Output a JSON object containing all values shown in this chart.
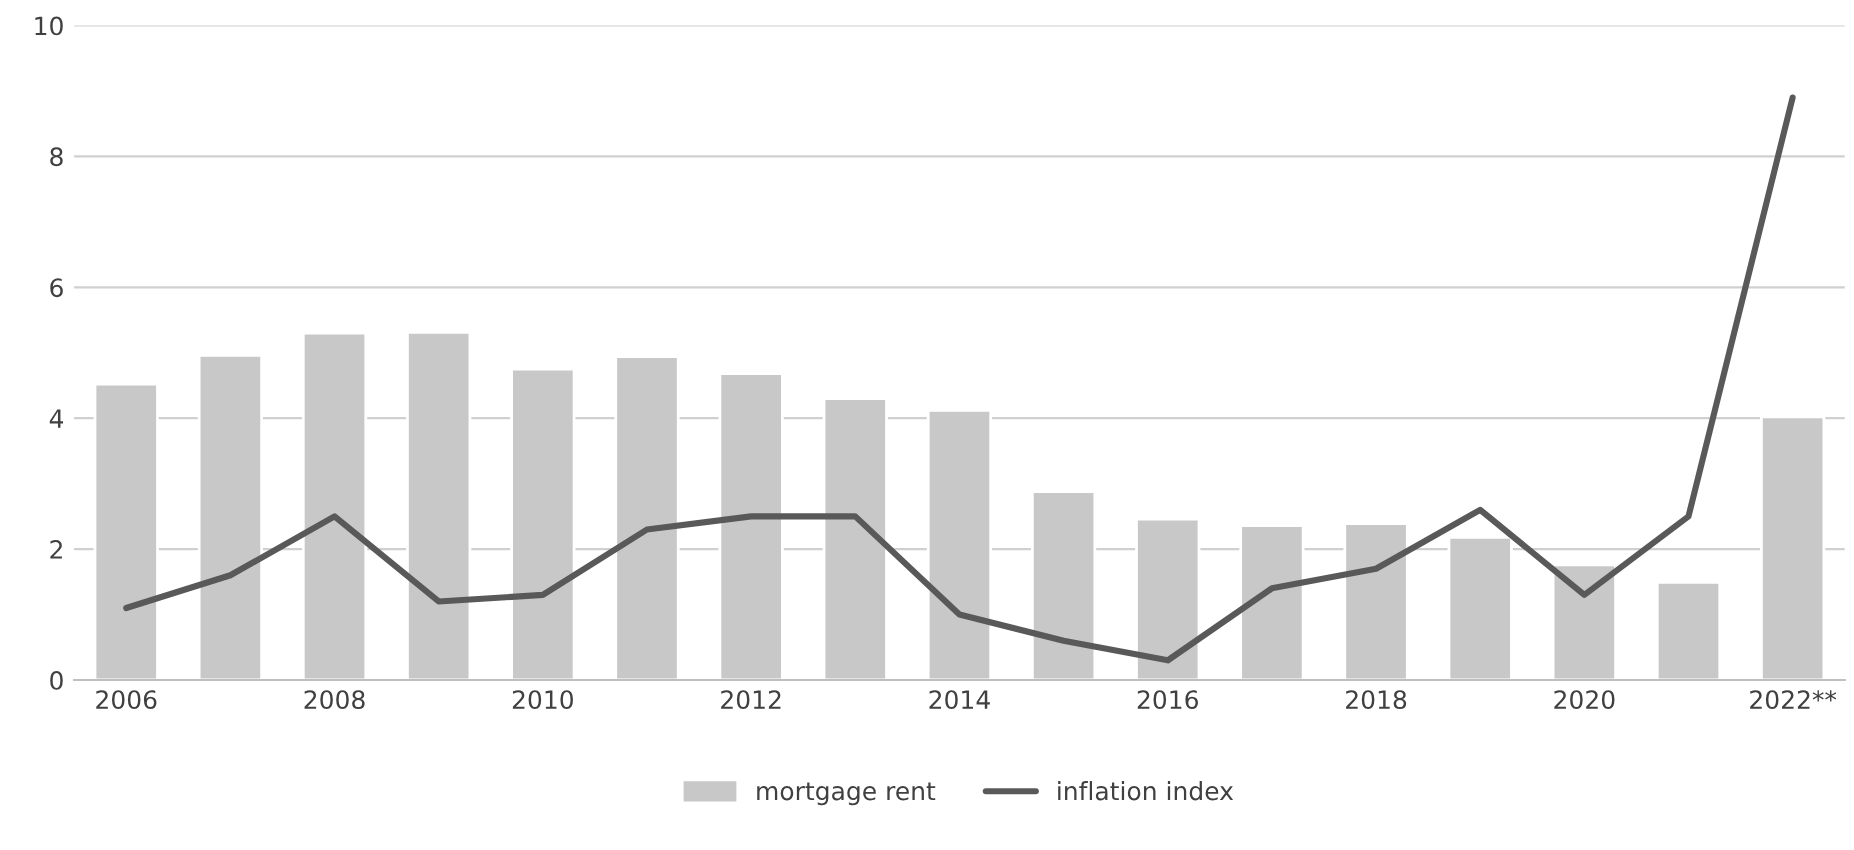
{
  "chart_data": {
    "type": "bar",
    "categories": [
      "2006",
      null,
      "2008",
      null,
      "2010",
      null,
      "2012",
      null,
      "2014",
      null,
      "2016",
      null,
      "2018",
      null,
      "2020",
      null,
      "2022**"
    ],
    "series": [
      {
        "name": "mortgage rent",
        "color": "#c8c8c8",
        "values": [
          4.52,
          4.96,
          5.3,
          5.31,
          4.75,
          4.94,
          4.68,
          4.3,
          4.12,
          2.88,
          2.46,
          2.36,
          2.39,
          2.18,
          1.76,
          1.49,
          4.02
        ]
      },
      {
        "name": "inflation index",
        "type": "line",
        "color": "#595959",
        "values": [
          1.1,
          1.6,
          2.5,
          1.2,
          1.3,
          2.3,
          2.5,
          2.5,
          1.0,
          0.6,
          0.3,
          1.4,
          1.7,
          2.6,
          1.3,
          2.5,
          8.9
        ]
      }
    ],
    "ylim": [
      0,
      10
    ],
    "yticks": [
      0,
      2,
      4,
      6,
      8,
      10
    ],
    "grid": "y",
    "legend": "bottom"
  }
}
